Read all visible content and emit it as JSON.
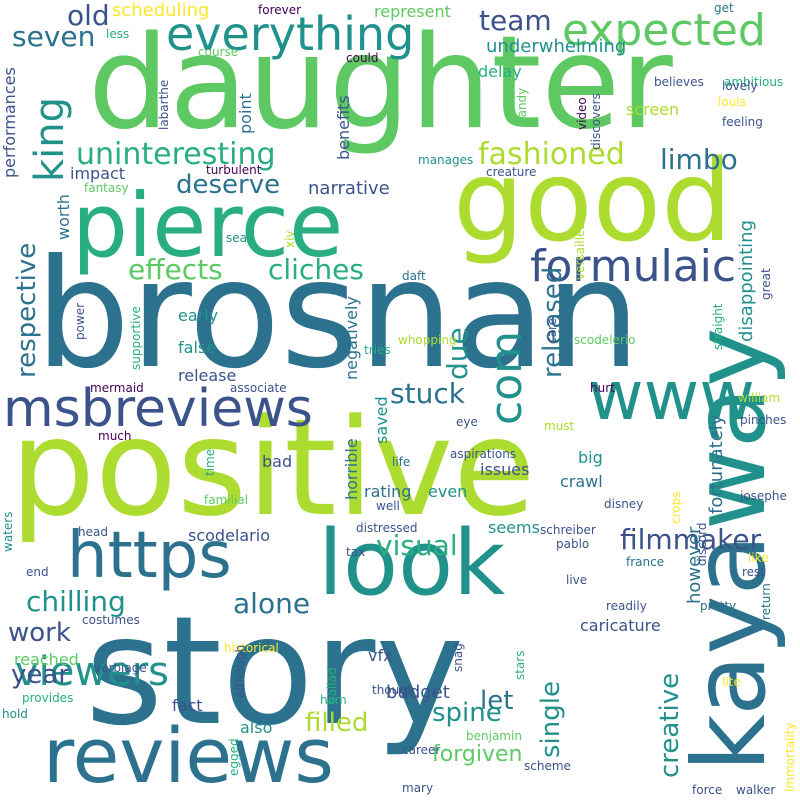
{
  "palette": {
    "purple": "#440154",
    "indigo": "#3b528b",
    "blue": "#2c728e",
    "teal": "#21918c",
    "aqua": "#28ae80",
    "green": "#5ec962",
    "lime": "#addc30",
    "yellow": "#fde725"
  },
  "words": [
    {
      "text": "positive",
      "color": "lime"
    },
    {
      "text": "brosnan",
      "color": "blue"
    },
    {
      "text": "daughter",
      "color": "green"
    },
    {
      "text": "story",
      "color": "blue"
    },
    {
      "text": "good",
      "color": "lime"
    },
    {
      "text": "way",
      "color": "teal"
    },
    {
      "text": "kaya",
      "color": "blue"
    },
    {
      "text": "pierce",
      "color": "aqua"
    },
    {
      "text": "look",
      "color": "teal"
    },
    {
      "text": "reviews",
      "color": "blue"
    },
    {
      "text": "www",
      "color": "teal"
    },
    {
      "text": "https",
      "color": "blue"
    },
    {
      "text": "msbreviews",
      "color": "indigo"
    },
    {
      "text": "everything",
      "color": "teal"
    },
    {
      "text": "expected",
      "color": "green"
    },
    {
      "text": "formulaic",
      "color": "indigo"
    },
    {
      "text": "king",
      "color": "teal"
    },
    {
      "text": "com",
      "color": "teal"
    },
    {
      "text": "uninteresting",
      "color": "aqua"
    },
    {
      "text": "fashioned",
      "color": "lime"
    },
    {
      "text": "visual",
      "color": "aqua"
    },
    {
      "text": "filmmaker",
      "color": "indigo"
    },
    {
      "text": "viewers",
      "color": "teal"
    },
    {
      "text": "chilling",
      "color": "teal"
    },
    {
      "text": "cliches",
      "color": "aqua"
    },
    {
      "text": "effects",
      "color": "green"
    },
    {
      "text": "alone",
      "color": "blue"
    },
    {
      "text": "deserve",
      "color": "blue"
    },
    {
      "text": "old",
      "color": "indigo"
    },
    {
      "text": "seven",
      "color": "blue"
    },
    {
      "text": "team",
      "color": "indigo"
    },
    {
      "text": "limbo",
      "color": "blue"
    },
    {
      "text": "stuck",
      "color": "blue"
    },
    {
      "text": "due",
      "color": "teal"
    },
    {
      "text": "released",
      "color": "blue"
    },
    {
      "text": "respective",
      "color": "blue"
    },
    {
      "text": "work",
      "color": "indigo"
    },
    {
      "text": "year",
      "color": "indigo"
    },
    {
      "text": "filled",
      "color": "lime"
    },
    {
      "text": "let",
      "color": "blue"
    },
    {
      "text": "single",
      "color": "teal"
    },
    {
      "text": "creative",
      "color": "teal"
    },
    {
      "text": "spine",
      "color": "teal"
    },
    {
      "text": "forgiven",
      "color": "green"
    },
    {
      "text": "budget",
      "color": "indigo"
    },
    {
      "text": "caricature",
      "color": "indigo"
    },
    {
      "text": "fortunately",
      "color": "blue"
    },
    {
      "text": "however",
      "color": "blue"
    },
    {
      "text": "disappointing",
      "color": "teal"
    },
    {
      "text": "narrative",
      "color": "indigo"
    },
    {
      "text": "scheduling",
      "color": "yellow"
    },
    {
      "text": "underwhelming",
      "color": "teal"
    },
    {
      "text": "represent",
      "color": "green"
    },
    {
      "text": "delay",
      "color": "aqua"
    },
    {
      "text": "screen",
      "color": "lime"
    },
    {
      "text": "point",
      "color": "blue"
    },
    {
      "text": "benefits",
      "color": "indigo"
    },
    {
      "text": "impact",
      "color": "indigo"
    },
    {
      "text": "worth",
      "color": "blue"
    },
    {
      "text": "early",
      "color": "teal"
    },
    {
      "text": "false",
      "color": "teal"
    },
    {
      "text": "release",
      "color": "indigo"
    },
    {
      "text": "negatively",
      "color": "blue"
    },
    {
      "text": "saved",
      "color": "teal"
    },
    {
      "text": "horrible",
      "color": "blue"
    },
    {
      "text": "rating",
      "color": "blue"
    },
    {
      "text": "even",
      "color": "teal"
    },
    {
      "text": "issues",
      "color": "indigo"
    },
    {
      "text": "big",
      "color": "teal"
    },
    {
      "text": "crawl",
      "color": "blue"
    },
    {
      "text": "seems",
      "color": "teal"
    },
    {
      "text": "scodelario",
      "color": "indigo"
    },
    {
      "text": "bad",
      "color": "indigo"
    },
    {
      "text": "also",
      "color": "teal"
    },
    {
      "text": "fact",
      "color": "indigo"
    },
    {
      "text": "reached",
      "color": "green"
    },
    {
      "text": "vfx",
      "color": "indigo"
    },
    {
      "text": "forever",
      "color": "purple"
    },
    {
      "text": "less",
      "color": "aqua"
    },
    {
      "text": "course",
      "color": "green"
    },
    {
      "text": "labarthe",
      "color": "indigo"
    },
    {
      "text": "could",
      "color": "purple"
    },
    {
      "text": "ambitious",
      "color": "aqua"
    },
    {
      "text": "believes",
      "color": "indigo"
    },
    {
      "text": "lovely",
      "color": "indigo"
    },
    {
      "text": "louis",
      "color": "yellow"
    },
    {
      "text": "feeling",
      "color": "indigo"
    },
    {
      "text": "candy",
      "color": "green"
    },
    {
      "text": "video",
      "color": "purple"
    },
    {
      "text": "discovers",
      "color": "indigo"
    },
    {
      "text": "get",
      "color": "blue"
    },
    {
      "text": "performances",
      "color": "indigo"
    },
    {
      "text": "turbulent",
      "color": "purple"
    },
    {
      "text": "fantasy",
      "color": "green"
    },
    {
      "text": "manages",
      "color": "teal"
    },
    {
      "text": "creature",
      "color": "indigo"
    },
    {
      "text": "versailles",
      "color": "lime"
    },
    {
      "text": "sea",
      "color": "teal"
    },
    {
      "text": "xiv",
      "color": "lime"
    },
    {
      "text": "daft",
      "color": "blue"
    },
    {
      "text": "great",
      "color": "indigo"
    },
    {
      "text": "power",
      "color": "indigo"
    },
    {
      "text": "supportive",
      "color": "aqua"
    },
    {
      "text": "whopping",
      "color": "lime"
    },
    {
      "text": "scodelerio",
      "color": "green"
    },
    {
      "text": "tries",
      "color": "aqua"
    },
    {
      "text": "care",
      "color": "indigo"
    },
    {
      "text": "straight",
      "color": "aqua"
    },
    {
      "text": "mermaid",
      "color": "purple"
    },
    {
      "text": "associate",
      "color": "indigo"
    },
    {
      "text": "hurt",
      "color": "purple"
    },
    {
      "text": "william",
      "color": "lime"
    },
    {
      "text": "much",
      "color": "purple"
    },
    {
      "text": "eye",
      "color": "indigo"
    },
    {
      "text": "must",
      "color": "lime"
    },
    {
      "text": "pinches",
      "color": "indigo"
    },
    {
      "text": "time",
      "color": "aqua"
    },
    {
      "text": "life",
      "color": "blue"
    },
    {
      "text": "aspirations",
      "color": "indigo"
    },
    {
      "text": "familial",
      "color": "green"
    },
    {
      "text": "well",
      "color": "indigo"
    },
    {
      "text": "disney",
      "color": "indigo"
    },
    {
      "text": "josephe",
      "color": "indigo"
    },
    {
      "text": "distressed",
      "color": "indigo"
    },
    {
      "text": "crops",
      "color": "yellow"
    },
    {
      "text": "waters",
      "color": "teal"
    },
    {
      "text": "head",
      "color": "indigo"
    },
    {
      "text": "schreiber",
      "color": "indigo"
    },
    {
      "text": "tax",
      "color": "indigo"
    },
    {
      "text": "pablo",
      "color": "indigo"
    },
    {
      "text": "like",
      "color": "yellow"
    },
    {
      "text": "end",
      "color": "indigo"
    },
    {
      "text": "france",
      "color": "blue"
    },
    {
      "text": "rest",
      "color": "indigo"
    },
    {
      "text": "discord",
      "color": "indigo"
    },
    {
      "text": "live",
      "color": "indigo"
    },
    {
      "text": "though",
      "color": "indigo"
    },
    {
      "text": "costumes",
      "color": "indigo"
    },
    {
      "text": "readily",
      "color": "indigo"
    },
    {
      "text": "pretty",
      "color": "blue"
    },
    {
      "text": "return",
      "color": "blue"
    },
    {
      "text": "historical",
      "color": "yellow"
    },
    {
      "text": "verbiage",
      "color": "indigo"
    },
    {
      "text": "although",
      "color": "indigo"
    },
    {
      "text": "ballad",
      "color": "aqua"
    },
    {
      "text": "snag",
      "color": "indigo"
    },
    {
      "text": "stars",
      "color": "aqua"
    },
    {
      "text": "lite",
      "color": "yellow"
    },
    {
      "text": "provides",
      "color": "aqua"
    },
    {
      "text": "hold",
      "color": "teal"
    },
    {
      "text": "ham",
      "color": "aqua"
    },
    {
      "text": "career",
      "color": "indigo"
    },
    {
      "text": "benjamin",
      "color": "green"
    },
    {
      "text": "egged",
      "color": "aqua"
    },
    {
      "text": "scheme",
      "color": "indigo"
    },
    {
      "text": "immortality",
      "color": "yellow"
    },
    {
      "text": "mary",
      "color": "indigo"
    },
    {
      "text": "force",
      "color": "indigo"
    },
    {
      "text": "walker",
      "color": "indigo"
    }
  ]
}
